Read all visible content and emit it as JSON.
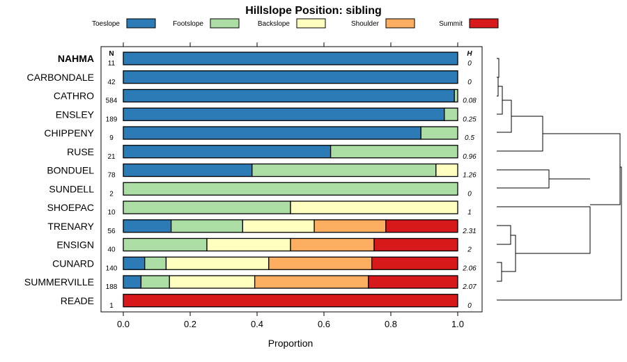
{
  "chart_data": {
    "type": "bar",
    "orientation": "horizontal",
    "stacked": true,
    "title": "Hillslope Position: sibling",
    "xlabel": "Proportion",
    "xlim": [
      0,
      1
    ],
    "xticks": [
      "0.0",
      "0.2",
      "0.4",
      "0.6",
      "0.8",
      "1.0"
    ],
    "n_header": "N",
    "h_header": "H",
    "legend": [
      {
        "name": "Toeslope",
        "color": "#2c7bb6"
      },
      {
        "name": "Footslope",
        "color": "#abdda4"
      },
      {
        "name": "Backslope",
        "color": "#ffffbf"
      },
      {
        "name": "Shoulder",
        "color": "#fdae61"
      },
      {
        "name": "Summit",
        "color": "#d7191c"
      }
    ],
    "rows": [
      {
        "label": "NAHMA",
        "bold": true,
        "n": "11",
        "h": "0",
        "values": [
          1.0,
          0,
          0,
          0,
          0
        ]
      },
      {
        "label": "CARBONDALE",
        "bold": false,
        "n": "42",
        "h": "0",
        "values": [
          1.0,
          0,
          0,
          0,
          0
        ]
      },
      {
        "label": "CATHRO",
        "bold": false,
        "n": "584",
        "h": "0.08",
        "values": [
          0.99,
          0.01,
          0,
          0,
          0
        ]
      },
      {
        "label": "ENSLEY",
        "bold": false,
        "n": "189",
        "h": "0.25",
        "values": [
          0.96,
          0.04,
          0,
          0,
          0
        ]
      },
      {
        "label": "CHIPPENY",
        "bold": false,
        "n": "9",
        "h": "0.5",
        "values": [
          0.89,
          0.11,
          0,
          0,
          0
        ]
      },
      {
        "label": "RUSE",
        "bold": false,
        "n": "21",
        "h": "0.96",
        "values": [
          0.62,
          0.38,
          0,
          0,
          0
        ]
      },
      {
        "label": "BONDUEL",
        "bold": false,
        "n": "78",
        "h": "1.26",
        "values": [
          0.385,
          0.55,
          0.065,
          0,
          0
        ]
      },
      {
        "label": "SUNDELL",
        "bold": false,
        "n": "2",
        "h": "0",
        "values": [
          0,
          1.0,
          0,
          0,
          0
        ]
      },
      {
        "label": "SHOEPAC",
        "bold": false,
        "n": "10",
        "h": "1",
        "values": [
          0,
          0.5,
          0.5,
          0,
          0
        ]
      },
      {
        "label": "TRENARY",
        "bold": false,
        "n": "56",
        "h": "2.31",
        "values": [
          0.143,
          0.214,
          0.214,
          0.214,
          0.215
        ]
      },
      {
        "label": "ENSIGN",
        "bold": false,
        "n": "40",
        "h": "2",
        "values": [
          0,
          0.25,
          0.25,
          0.25,
          0.25
        ]
      },
      {
        "label": "CUNARD",
        "bold": false,
        "n": "140",
        "h": "2.06",
        "values": [
          0.064,
          0.064,
          0.307,
          0.308,
          0.257
        ]
      },
      {
        "label": "SUMMERVILLE",
        "bold": false,
        "n": "188",
        "h": "2.07",
        "values": [
          0.053,
          0.085,
          0.255,
          0.34,
          0.267
        ]
      },
      {
        "label": "READE",
        "bold": false,
        "n": "1",
        "h": "0",
        "values": [
          0,
          0,
          0,
          0,
          1.0
        ]
      }
    ]
  }
}
